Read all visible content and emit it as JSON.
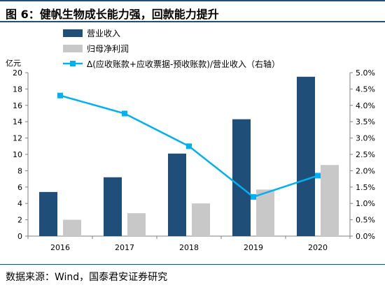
{
  "title": "图 6：健帆生物成长能力强，回款能力提升",
  "source": "数据来源：Wind，国泰君安证券研究",
  "chart_data": {
    "type": "bar",
    "categories": [
      "2016",
      "2017",
      "2018",
      "2019",
      "2020"
    ],
    "left_axis_unit": "亿元",
    "ylim_left": [
      0,
      20
    ],
    "yticks_left": [
      0,
      2,
      4,
      6,
      8,
      10,
      12,
      14,
      16,
      18,
      20
    ],
    "ylim_right": [
      0.0,
      5.0
    ],
    "yticks_right": [
      "0.0%",
      "0.5%",
      "1.0%",
      "1.5%",
      "2.0%",
      "2.5%",
      "3.0%",
      "3.5%",
      "4.0%",
      "4.5%",
      "5.0%"
    ],
    "grid": false,
    "legend_position": "top-left",
    "series": [
      {
        "name": "营业收入",
        "type": "bar",
        "axis": "left",
        "color": "#1f4e79",
        "values": [
          5.4,
          7.2,
          10.1,
          14.3,
          19.5
        ]
      },
      {
        "name": "归母净利润",
        "type": "bar",
        "axis": "left",
        "color": "#c8c8c8",
        "values": [
          2.0,
          2.8,
          4.0,
          5.7,
          8.7
        ]
      },
      {
        "name": "Δ(应收账款+应收票据-预收账款)/营业收入（右轴）",
        "type": "line",
        "axis": "right",
        "color": "#00b0f0",
        "values": [
          4.3,
          3.75,
          2.75,
          1.2,
          1.85
        ]
      }
    ]
  }
}
